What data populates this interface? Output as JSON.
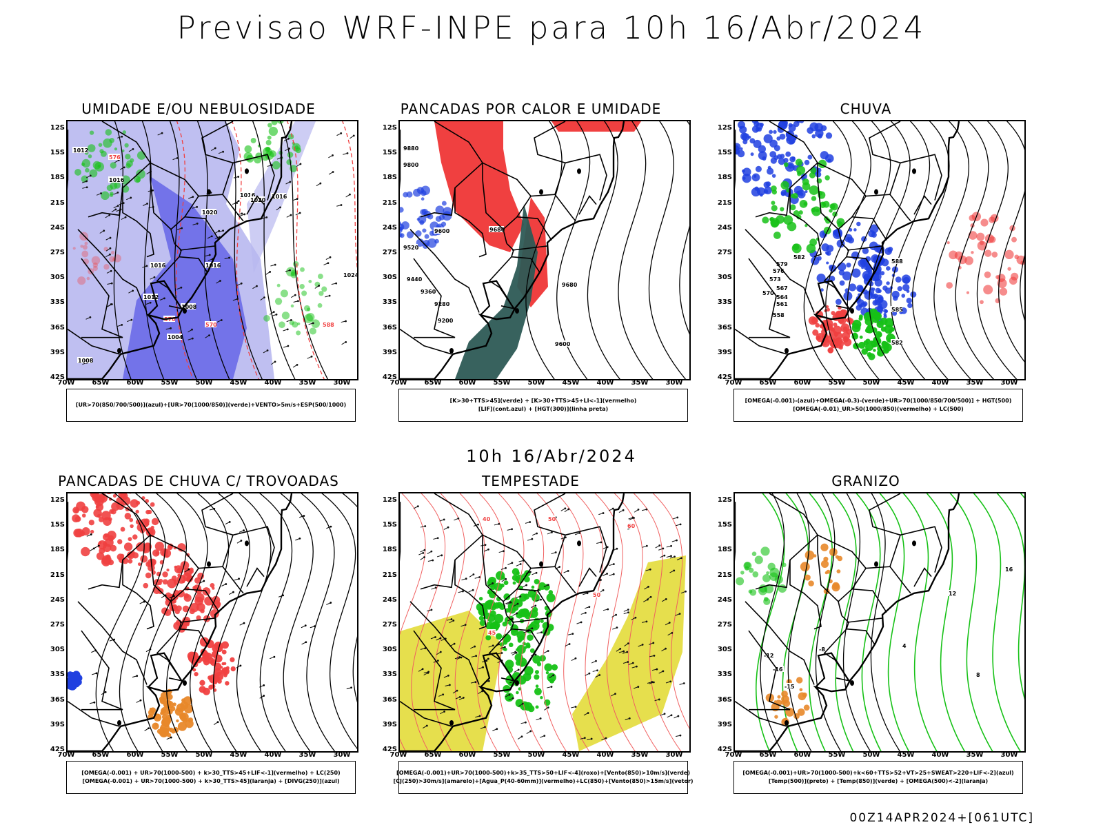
{
  "title": "Previsao WRF-INPE  para 10h 16/Abr/2024",
  "mid_date": "10h 16/Abr/2024",
  "run_stamp": "00Z14APR2024+[061UTC]",
  "axes": {
    "lat_labels": [
      "12S",
      "15S",
      "18S",
      "21S",
      "24S",
      "27S",
      "30S",
      "33S",
      "36S",
      "39S",
      "42S"
    ],
    "lon_labels": [
      "70W",
      "65W",
      "60W",
      "55W",
      "50W",
      "45W",
      "40W",
      "35W",
      "30W"
    ]
  },
  "colors": {
    "humidity_blue": "#6a6ae8",
    "humidity_light": "#b8b8f0",
    "green": "#16c116",
    "red": "#f04040",
    "blue": "#2040e0",
    "dark_teal": "#2d5a55",
    "orange": "#e8882a",
    "yellow": "#e3dc3a",
    "pink_lines": "#f06060"
  },
  "panels": [
    {
      "id": "umidade",
      "title": "UMIDADE E/OU NEBULOSIDADE",
      "legend": [
        "[UR>70(850/700/500)](azul)+[UR>70(1000/850)](verde)+VENTO>5m/s+ESP(500/1000)"
      ],
      "labels": [
        "1012",
        "1016",
        "1016",
        "1020",
        "1016",
        "1020",
        "1016",
        "1016",
        "1012",
        "1008",
        "1004",
        "1008",
        "1024",
        "576",
        "570",
        "570",
        "588"
      ]
    },
    {
      "id": "pancadas_calor",
      "title": "PANCADAS POR CALOR E UMIDADE",
      "legend": [
        "[K>30+TTS>45](verde) + [K>30+TTS>45+LI<-1](vermelho)",
        "[LIF](cont.azul) + [HGT(300)](linha preta)"
      ],
      "labels": [
        "9880",
        "9800",
        "9600",
        "9520",
        "9440",
        "9360",
        "9280",
        "9200",
        "9680",
        "9680",
        "9600"
      ]
    },
    {
      "id": "chuva",
      "title": "CHUVA",
      "legend": [
        "[OMEGA(-0.001)-(azul)+OMEGA(-0.3)-(verde)+UR>70(1000/850/700/500)] + HGT(500)",
        "[OMEGA(-0.01)_UR>50(1000/850)(vermelho) + LC(500)"
      ],
      "labels": [
        "582",
        "579",
        "576",
        "573",
        "570",
        "567",
        "564",
        "561",
        "558",
        "588",
        "585",
        "582"
      ]
    },
    {
      "id": "trovoadas",
      "title": "PANCADAS DE CHUVA C/ TROVOADAS",
      "legend": [
        "[OMEGA(-0.001) + UR>70(1000-500) + k>30_TTS>45+LIF<-1](vermelho) + LC(250)",
        "[OMEGA(-0.001) + UR>70(1000-500) + k>30_TTS>45](laranja) + [DIVG(250)](azul)"
      ],
      "labels": []
    },
    {
      "id": "tempestade",
      "title": "TEMPESTADE",
      "legend": [
        "[OMEGA(-0.001)+UR>70(1000-500)+k>35_TTS>50+LIF<-4](roxo)+[Vento(850)>10m/s](verde)",
        "[CJ(250)>30m/s](amarelo)+[Agua_P(40-60mm)](vermelho)+LC(850)+[Vento(850)>15m/s](vetor)"
      ],
      "labels": [
        "40",
        "50",
        "60",
        "50",
        "45"
      ]
    },
    {
      "id": "granizo",
      "title": "GRANIZO",
      "legend": [
        "[OMEGA(-0.001)+UR>70(1000-500)+k<60+TTS>52+VT>25+SWEAT>220+LIF<-2](azul)",
        "[Temp(500)](preto) + [Temp(850)](verde) + [OMEGA(500)<-2](laranja)"
      ],
      "labels": [
        "-12",
        "-16",
        "-15",
        "-8",
        "12",
        "16",
        "8",
        "4"
      ]
    }
  ]
}
